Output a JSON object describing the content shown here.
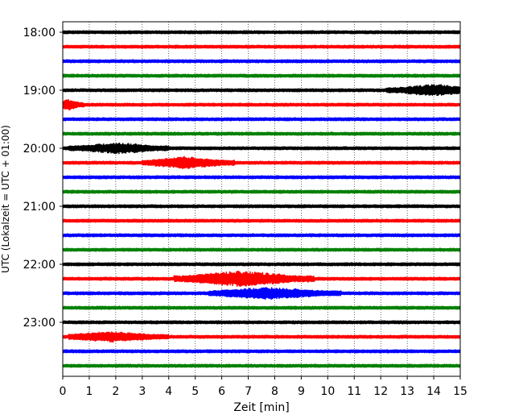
{
  "chart_data": {
    "type": "line",
    "title": "",
    "xlabel": "Zeit  [min]",
    "ylabel": "UTC (Lokalzeit = UTC + 01:00)",
    "xlim": [
      0,
      15
    ],
    "x_ticks": [
      "0",
      "1",
      "2",
      "3",
      "4",
      "5",
      "6",
      "7",
      "8",
      "9",
      "10",
      "11",
      "12",
      "13",
      "14",
      "15"
    ],
    "y_tick_labels": [
      "18:00",
      "19:00",
      "20:00",
      "21:00",
      "22:00",
      "23:00"
    ],
    "grid": "vertical dotted",
    "trace_interval_minutes": 15,
    "trace_start_times": [
      "18:00",
      "18:15",
      "18:30",
      "18:45",
      "19:00",
      "19:15",
      "19:30",
      "19:45",
      "20:00",
      "20:15",
      "20:30",
      "20:45",
      "21:00",
      "21:15",
      "21:30",
      "21:45",
      "22:00",
      "22:15",
      "22:30",
      "22:45",
      "23:00",
      "23:15",
      "23:30",
      "23:45"
    ],
    "series_colors": [
      "#000000",
      "#ff0000",
      "#0000ff",
      "#008000"
    ],
    "events": [
      {
        "trace": "19:00",
        "color": "#000000",
        "start_min": 12.2,
        "end_min": 15.0,
        "peak_min": 14.0,
        "relative_amplitude": 0.6
      },
      {
        "trace": "19:15",
        "color": "#ff0000",
        "start_min": 0.0,
        "end_min": 0.8,
        "peak_min": 0.2,
        "relative_amplitude": 0.5
      },
      {
        "trace": "20:00",
        "color": "#000000",
        "start_min": 0.2,
        "end_min": 4.0,
        "peak_min": 2.1,
        "relative_amplitude": 0.55
      },
      {
        "trace": "20:15",
        "color": "#ff0000",
        "start_min": 3.0,
        "end_min": 6.5,
        "peak_min": 4.6,
        "relative_amplitude": 0.6
      },
      {
        "trace": "22:15",
        "color": "#ff0000",
        "start_min": 4.2,
        "end_min": 9.5,
        "peak_min": 6.7,
        "relative_amplitude": 0.85
      },
      {
        "trace": "22:30",
        "color": "#0000ff",
        "start_min": 5.5,
        "end_min": 10.5,
        "peak_min": 7.7,
        "relative_amplitude": 0.6
      },
      {
        "trace": "23:15",
        "color": "#ff0000",
        "start_min": 0.2,
        "end_min": 4.0,
        "peak_min": 1.8,
        "relative_amplitude": 0.5
      }
    ]
  }
}
